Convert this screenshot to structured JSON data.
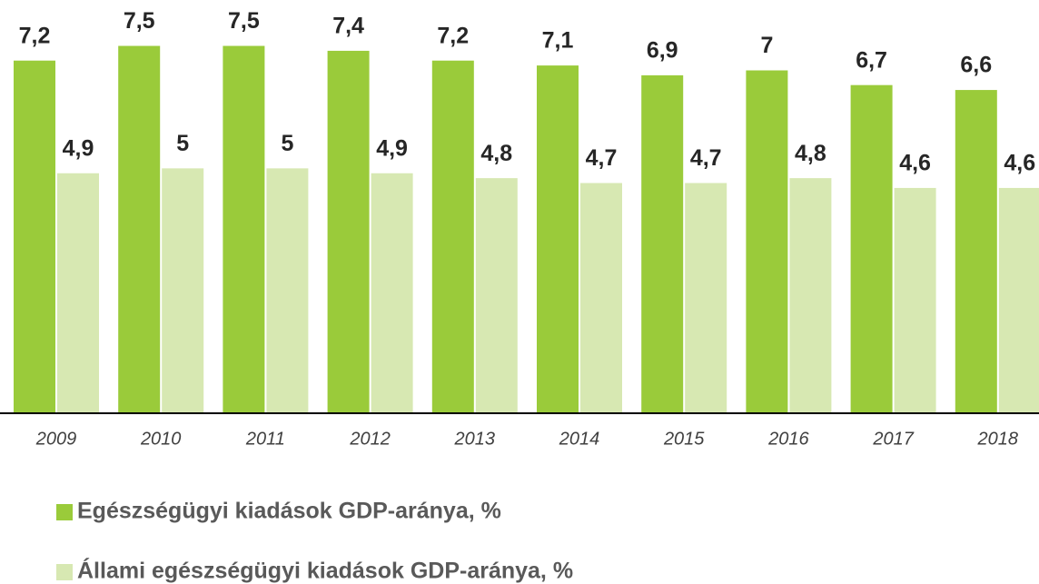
{
  "chart_data": {
    "type": "bar",
    "categories": [
      "2009",
      "2010",
      "2011",
      "2012",
      "2013",
      "2014",
      "2015",
      "2016",
      "2017",
      "2018"
    ],
    "series": [
      {
        "name": "Egészségügyi kiadások GDP-aránya, %",
        "color": "#9acb3a",
        "values": [
          7.2,
          7.5,
          7.5,
          7.4,
          7.2,
          7.1,
          6.9,
          7,
          6.7,
          6.6
        ],
        "value_labels": [
          "7,2",
          "7,5",
          "7,5",
          "7,4",
          "7,2",
          "7,1",
          "6,9",
          "7",
          "6,7",
          "6,6"
        ]
      },
      {
        "name": "Állami egészségügyi kiadások GDP-aránya, %",
        "color": "#d7e8b2",
        "values": [
          4.9,
          5,
          5,
          4.9,
          4.8,
          4.7,
          4.7,
          4.8,
          4.6,
          4.6
        ],
        "value_labels": [
          "4,9",
          "5",
          "5",
          "4,9",
          "4,8",
          "4,7",
          "4,7",
          "4,8",
          "4,6",
          "4,6"
        ]
      }
    ],
    "ylim": [
      0,
      8.4
    ]
  }
}
